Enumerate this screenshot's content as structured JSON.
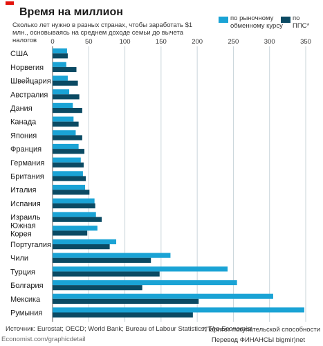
{
  "header": {
    "title": "Время на миллион",
    "subtitle": "Сколько лет нужно в разных странах, чтобы заработать $1 млн., основываясь на среднем доходе семьи до вычета налогов"
  },
  "legend": {
    "market": "по рыночному обменному курсу",
    "ppp": "по ППС*"
  },
  "colors": {
    "market": "#1aa3d5",
    "ppp": "#0b4a63",
    "accent": "#e3120b",
    "grid": "#c9d4da"
  },
  "footer": {
    "source_prefix": "Источник: Eurostat; OECD; World Bank; Bureau of Labour Statistics; ",
    "source_em": "The Economist",
    "site": "Economist.com/graphicdetail",
    "footnote": "*Паритет покупательской способности",
    "credit": "Перевод ФИНАНСЫ bigmir)net"
  },
  "chart_data": {
    "type": "bar",
    "orientation": "horizontal",
    "categories": [
      "США",
      "Норвегия",
      "Швейцария",
      "Австралия",
      "Дания",
      "Канада",
      "Япония",
      "Франция",
      "Германия",
      "Британия",
      "Италия",
      "Испания",
      "Израиль",
      "Южная Корея",
      "Португалия",
      "Чили",
      "Турция",
      "Болгария",
      "Мексика",
      "Румыния"
    ],
    "series": [
      {
        "name": "по рыночному обменному курсу",
        "values": [
          20,
          19,
          21,
          23,
          28,
          29,
          32,
          36,
          39,
          42,
          45,
          58,
          60,
          62,
          88,
          163,
          242,
          255,
          305,
          348
        ]
      },
      {
        "name": "по ППС*",
        "values": [
          21,
          33,
          35,
          37,
          41,
          36,
          41,
          44,
          43,
          46,
          51,
          59,
          68,
          48,
          79,
          136,
          148,
          124,
          202,
          194
        ]
      }
    ],
    "xlim": [
      0,
      350
    ],
    "xticks": [
      0,
      50,
      100,
      150,
      200,
      250,
      300,
      350
    ],
    "grid": true,
    "legend_position": "top-right"
  }
}
